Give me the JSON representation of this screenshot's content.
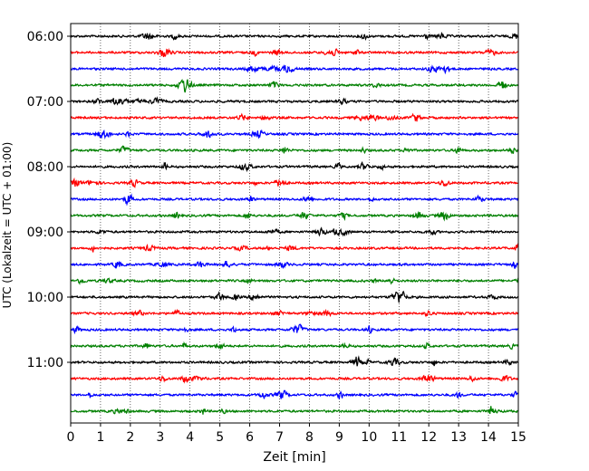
{
  "chart_data": {
    "type": "line",
    "title": "",
    "xlabel": "Zeit  [min]",
    "ylabel": "UTC (Lokalzeit = UTC + 01:00)",
    "xlim": [
      0,
      15
    ],
    "x_ticks": [
      0,
      1,
      2,
      3,
      4,
      5,
      6,
      7,
      8,
      9,
      10,
      11,
      12,
      13,
      14,
      15
    ],
    "trace_interval_min": 15,
    "trace_start": "06:00",
    "y_tick_labels": [
      "06:00",
      "07:00",
      "08:00",
      "09:00",
      "10:00",
      "11:00"
    ],
    "traces": [
      {
        "start": "06:00",
        "color": "#000000"
      },
      {
        "start": "06:15",
        "color": "#ff0000"
      },
      {
        "start": "06:30",
        "color": "#0000ff"
      },
      {
        "start": "06:45",
        "color": "#008000"
      },
      {
        "start": "07:00",
        "color": "#000000"
      },
      {
        "start": "07:15",
        "color": "#ff0000"
      },
      {
        "start": "07:30",
        "color": "#0000ff"
      },
      {
        "start": "07:45",
        "color": "#008000"
      },
      {
        "start": "08:00",
        "color": "#000000"
      },
      {
        "start": "08:15",
        "color": "#ff0000"
      },
      {
        "start": "08:30",
        "color": "#0000ff"
      },
      {
        "start": "08:45",
        "color": "#008000"
      },
      {
        "start": "09:00",
        "color": "#000000"
      },
      {
        "start": "09:15",
        "color": "#ff0000"
      },
      {
        "start": "09:30",
        "color": "#0000ff"
      },
      {
        "start": "09:45",
        "color": "#008000"
      },
      {
        "start": "10:00",
        "color": "#000000"
      },
      {
        "start": "10:15",
        "color": "#ff0000"
      },
      {
        "start": "10:30",
        "color": "#0000ff"
      },
      {
        "start": "10:45",
        "color": "#008000"
      },
      {
        "start": "11:00",
        "color": "#000000"
      },
      {
        "start": "11:15",
        "color": "#ff0000"
      },
      {
        "start": "11:30",
        "color": "#0000ff"
      },
      {
        "start": "11:45",
        "color": "#008000"
      }
    ],
    "grid": "vertical dotted lines at each minute",
    "legend": "none"
  }
}
